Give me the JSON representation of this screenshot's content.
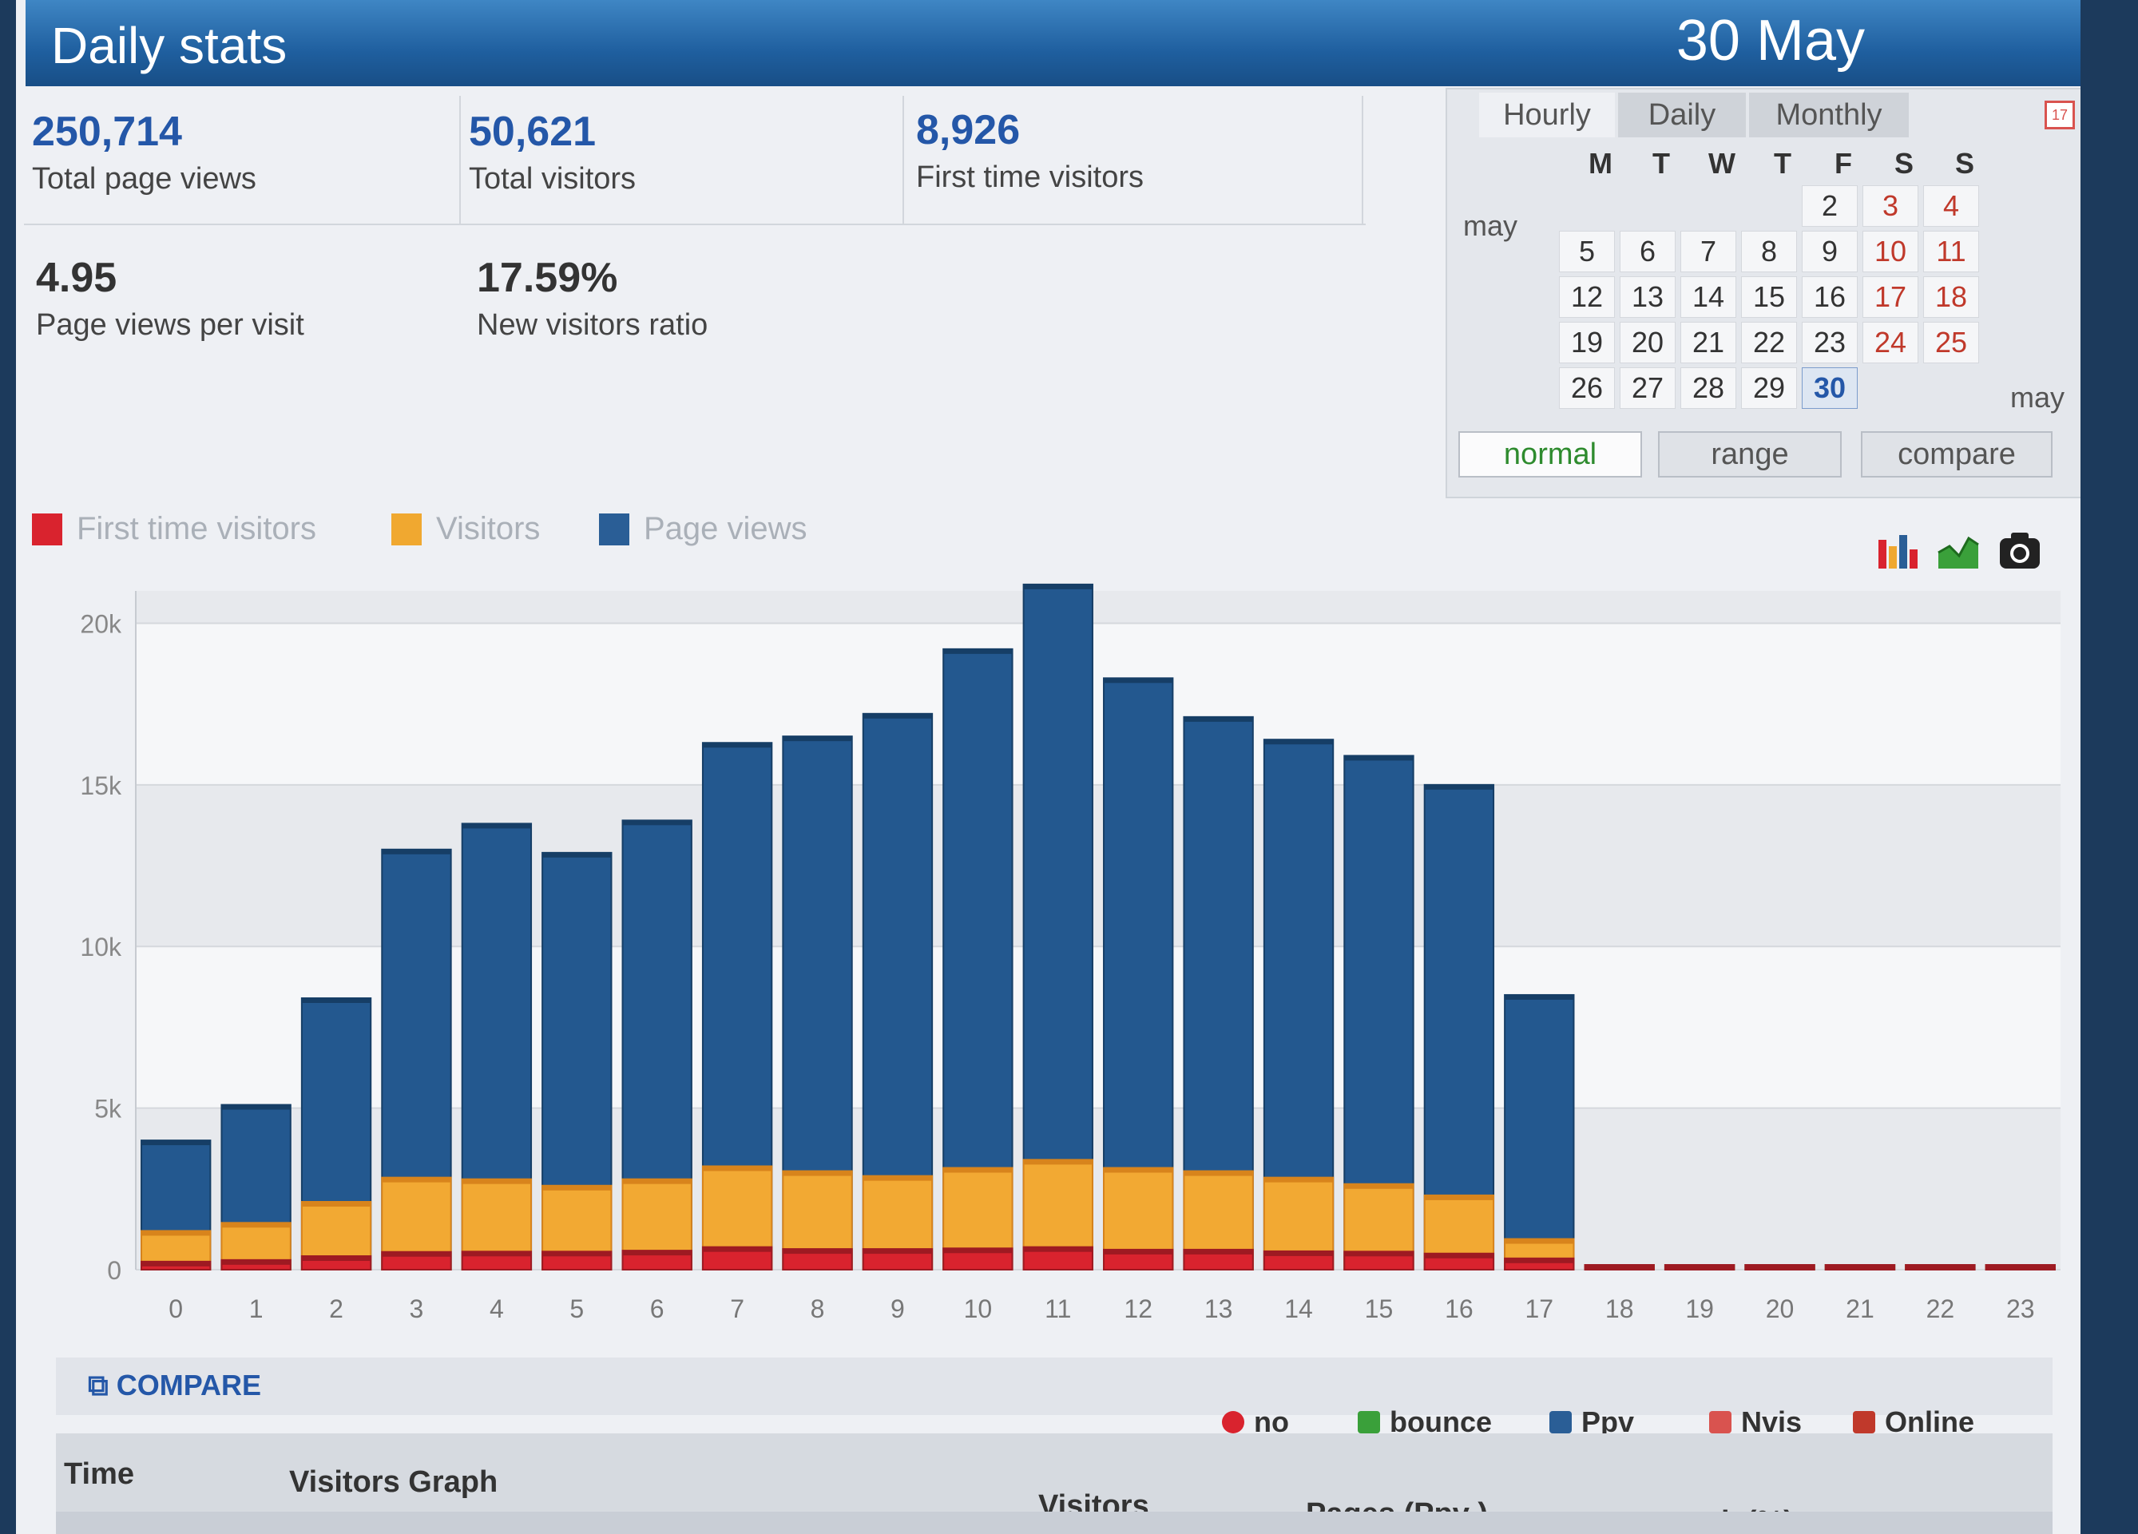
{
  "header": {
    "title": "Daily stats",
    "date": "30 May"
  },
  "stats": [
    {
      "value": "250,714",
      "label": "Total page views"
    },
    {
      "value": "50,621",
      "label": "Total visitors"
    },
    {
      "value": "8,926",
      "label": "First time visitors"
    },
    {
      "value": "4.95",
      "label": "Page views per visit"
    },
    {
      "value": "17.59%",
      "label": "New visitors ratio"
    }
  ],
  "calendar": {
    "tabs": [
      "Hourly",
      "Daily",
      "Monthly"
    ],
    "active_tab": "Hourly",
    "day_headers": [
      "M",
      "T",
      "W",
      "T",
      "F",
      "S",
      "S"
    ],
    "month_left": "may",
    "month_right": "may",
    "weeks": [
      [
        "",
        "",
        "",
        "",
        "2",
        "3",
        "4"
      ],
      [
        "5",
        "6",
        "7",
        "8",
        "9",
        "10",
        "11"
      ],
      [
        "12",
        "13",
        "14",
        "15",
        "16",
        "17",
        "18"
      ],
      [
        "19",
        "20",
        "21",
        "22",
        "23",
        "24",
        "25"
      ],
      [
        "26",
        "27",
        "28",
        "29",
        "30",
        "",
        ""
      ]
    ],
    "selected_day": "30",
    "modes": [
      "normal",
      "range",
      "compare"
    ],
    "active_mode": "normal"
  },
  "toolbar_icons": [
    "bar-chart-icon",
    "area-chart-icon",
    "camera-icon"
  ],
  "legend": [
    {
      "name": "First time visitors",
      "color": "#d9232e"
    },
    {
      "name": "Visitors",
      "color": "#f0a830"
    },
    {
      "name": "Page views",
      "color": "#2a5e96"
    }
  ],
  "chart_data": {
    "type": "bar",
    "stacked": false,
    "categories": [
      "0",
      "1",
      "2",
      "3",
      "4",
      "5",
      "6",
      "7",
      "8",
      "9",
      "10",
      "11",
      "12",
      "13",
      "14",
      "15",
      "16",
      "17",
      "18",
      "19",
      "20",
      "21",
      "22",
      "23"
    ],
    "yticks": [
      "0",
      "5k",
      "10k",
      "15k",
      "20k"
    ],
    "ylim": [
      0,
      21000
    ],
    "series": [
      {
        "name": "First time visitors",
        "values": [
          250,
          300,
          420,
          550,
          560,
          560,
          590,
          700,
          640,
          640,
          660,
          700,
          620,
          620,
          570,
          560,
          500,
          350,
          0,
          0,
          0,
          0,
          0,
          0
        ]
      },
      {
        "name": "Visitors",
        "values": [
          1200,
          1450,
          2100,
          2850,
          2800,
          2600,
          2800,
          3200,
          3050,
          2900,
          3150,
          3400,
          3150,
          3050,
          2850,
          2650,
          2300,
          950,
          0,
          0,
          0,
          0,
          0,
          0
        ]
      },
      {
        "name": "Page views",
        "values": [
          4000,
          5100,
          8400,
          13000,
          13800,
          12900,
          13900,
          16300,
          16500,
          17200,
          19200,
          21200,
          18300,
          17100,
          16400,
          15900,
          15000,
          8500,
          0,
          0,
          0,
          0,
          0,
          0
        ]
      }
    ],
    "grid": true,
    "legend_position": "top-left"
  },
  "compare": {
    "label": "COMPARE",
    "options": [
      "no",
      "bounce",
      "Ppv",
      "Nvis",
      "Online"
    ]
  },
  "table": {
    "headers": [
      "Time",
      "Visitors Graph",
      "Visitors",
      "Pages (Ppv )",
      "newvis(%)"
    ]
  }
}
